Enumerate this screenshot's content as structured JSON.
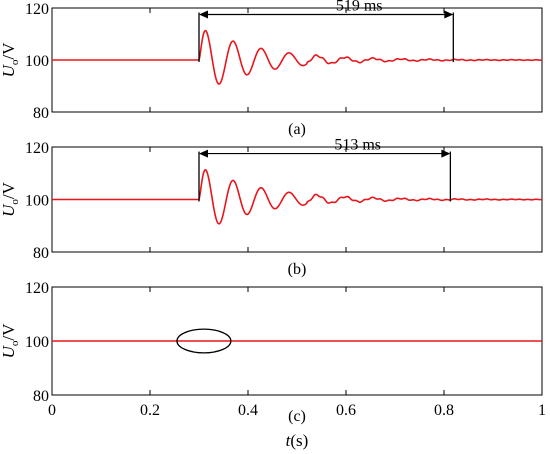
{
  "chart_data": [
    {
      "type": "line",
      "panel_label": "(a)",
      "ylabel": "Uo/V",
      "ylabel_main": "U",
      "ylabel_sub": "o",
      "ylabel_unit": "/V",
      "xlim": [
        0,
        1
      ],
      "ylim": [
        80,
        120
      ],
      "yticks": [
        "80",
        "100",
        "120"
      ],
      "show_xticks": false,
      "steady_value": 100,
      "disturbance_time": 0.3,
      "first_peak": 112.5,
      "first_trough": 92,
      "settle_time": 0.819,
      "annotation": {
        "label": "519 ms",
        "x_start": 0.3,
        "x_end": 0.819,
        "y": 117.5
      },
      "series": [
        {
          "values_described_by": "damped oscillation",
          "color": "#e8161b"
        }
      ]
    },
    {
      "type": "line",
      "panel_label": "(b)",
      "ylabel": "Uo/V",
      "ylabel_main": "U",
      "ylabel_sub": "o",
      "ylabel_unit": "/V",
      "xlim": [
        0,
        1
      ],
      "ylim": [
        80,
        120
      ],
      "yticks": [
        "80",
        "100",
        "120"
      ],
      "show_xticks": false,
      "steady_value": 100,
      "disturbance_time": 0.3,
      "first_peak": 112.5,
      "first_trough": 92.5,
      "settle_time": 0.813,
      "annotation": {
        "label": "513 ms",
        "x_start": 0.3,
        "x_end": 0.813,
        "y": 117.5
      },
      "series": [
        {
          "values_described_by": "damped oscillation",
          "color": "#e8161b"
        }
      ]
    },
    {
      "type": "line",
      "panel_label": "(c)",
      "ylabel": "Uo/V",
      "ylabel_main": "U",
      "ylabel_sub": "o",
      "ylabel_unit": "/V",
      "xlabel": "t(s)",
      "xlabel_main": "t",
      "xlabel_unit": "(s)",
      "xlim": [
        0,
        1
      ],
      "ylim": [
        80,
        120
      ],
      "yticks": [
        "80",
        "100",
        "120"
      ],
      "xticks": [
        "0",
        "0.2",
        "0.4",
        "0.6",
        "0.8",
        "1"
      ],
      "show_xticks": true,
      "steady_value": 100,
      "highlight_ellipse": {
        "cx": 0.31,
        "cy": 100,
        "rx": 0.055,
        "ry": 2.0
      },
      "series": [
        {
          "values_described_by": "flat",
          "color": "#e8161b"
        }
      ]
    }
  ]
}
